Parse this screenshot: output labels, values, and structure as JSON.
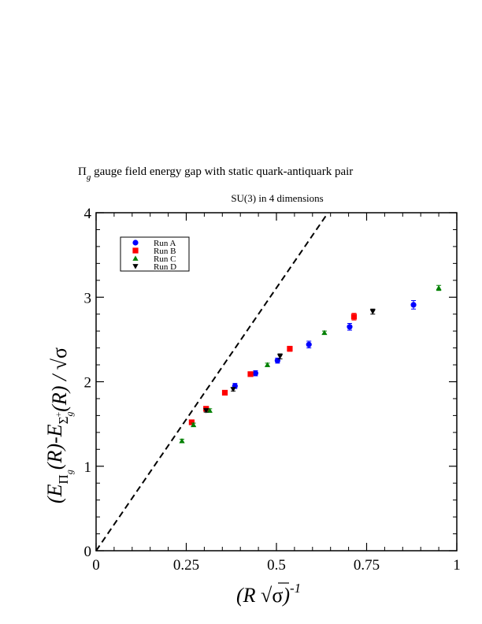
{
  "chart_data": {
    "type": "scatter",
    "title": "Π_g gauge field energy gap with static quark-antiquark pair",
    "title_parts": {
      "main": "Π",
      "sub": "g",
      "rest": " gauge field energy gap with static quark-antiquark pair"
    },
    "subtitle": "SU(3) in 4 dimensions",
    "xlabel": "(R √σ)^-1",
    "xlabel_parts": {
      "open": "(R ",
      "root": "√",
      "sigma": "σ",
      "close": ")",
      "power": "-1"
    },
    "ylabel": "(E_Πg(R)-E_Σg+(R)) / √σ",
    "ylabel_parts": {
      "open": "(E",
      "pi": "Π",
      "g": "g",
      "mid": "(R)-E",
      "sigma_sub": "Σ",
      "g2": "g",
      "plus": "+",
      "close": "(R) / ",
      "root": "√",
      "sigma": "σ"
    },
    "xlim": [
      0,
      1
    ],
    "ylim": [
      0,
      4
    ],
    "xticks": [
      0,
      0.25,
      0.5,
      0.75,
      1
    ],
    "xtick_labels": [
      "0",
      "0.25",
      "0.5",
      "0.75",
      "1"
    ],
    "yticks": [
      0,
      1,
      2,
      3,
      4
    ],
    "ytick_labels": [
      "0",
      "1",
      "2",
      "3",
      "4"
    ],
    "grid": false,
    "legend_position": "top-left",
    "reference_line": {
      "style": "dashed",
      "x": [
        0,
        0.643
      ],
      "y": [
        0,
        4
      ]
    },
    "series": [
      {
        "name": "Run A",
        "marker": "circle",
        "color": "#0000ff",
        "x": [
          0.385,
          0.442,
          0.503,
          0.59,
          0.703,
          0.88
        ],
        "y": [
          1.95,
          2.1,
          2.25,
          2.44,
          2.65,
          2.91
        ],
        "err": [
          0.03,
          0.03,
          0.03,
          0.04,
          0.04,
          0.05
        ]
      },
      {
        "name": "Run B",
        "marker": "square",
        "color": "#ff0000",
        "x": [
          0.265,
          0.305,
          0.357,
          0.428,
          0.537,
          0.715
        ],
        "y": [
          1.52,
          1.68,
          1.87,
          2.09,
          2.39,
          2.77
        ],
        "err": [
          0.02,
          0.02,
          0.02,
          0.02,
          0.03,
          0.04
        ]
      },
      {
        "name": "Run C",
        "marker": "triangle-up",
        "color": "#008000",
        "x": [
          0.238,
          0.27,
          0.315,
          0.475,
          0.633,
          0.95
        ],
        "y": [
          1.3,
          1.49,
          1.66,
          2.2,
          2.58,
          3.11
        ],
        "err": [
          0.02,
          0.02,
          0.02,
          0.02,
          0.02,
          0.03
        ]
      },
      {
        "name": "Run D",
        "marker": "triangle-down",
        "color": "#000000",
        "x": [
          0.305,
          0.38,
          0.51,
          0.767
        ],
        "y": [
          1.66,
          1.91,
          2.3,
          2.83
        ],
        "err": [
          0.02,
          0.02,
          0.03,
          0.03
        ]
      }
    ]
  }
}
